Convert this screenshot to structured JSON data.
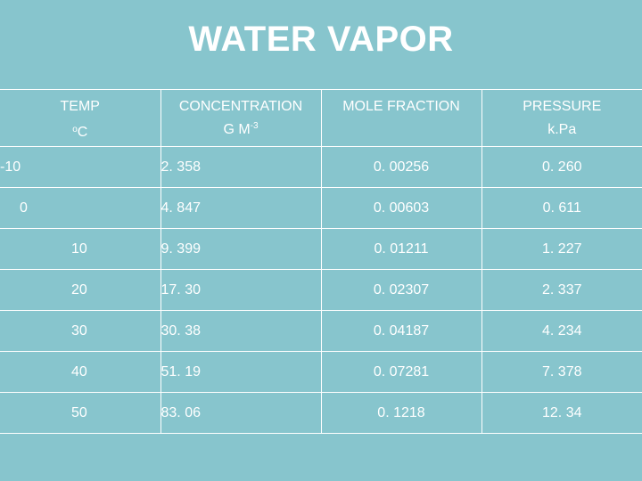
{
  "title": "WATER VAPOR",
  "headers": {
    "temp_line1": "TEMP",
    "temp_line2_unit": "C",
    "temp_line2_deg": "o",
    "conc_line1": "CONCENTRATION",
    "conc_line2": "G M",
    "conc_exp": "-3",
    "mole_line1": "MOLE FRACTION",
    "pressure_line1": "PRESSURE",
    "pressure_line2": "k.Pa"
  },
  "rows": [
    {
      "temp": "-10",
      "conc": "2. 358",
      "mole": "0. 00256",
      "pressure": "0. 260"
    },
    {
      "temp": "0",
      "conc": "4. 847",
      "mole": "0. 00603",
      "pressure": "0. 611"
    },
    {
      "temp": "10",
      "conc": "9. 399",
      "mole": "0. 01211",
      "pressure": "1. 227"
    },
    {
      "temp": "20",
      "conc": "17. 30",
      "mole": "0. 02307",
      "pressure": "2. 337"
    },
    {
      "temp": "30",
      "conc": "30. 38",
      "mole": "0. 04187",
      "pressure": "4. 234"
    },
    {
      "temp": "40",
      "conc": "51. 19",
      "mole": "0. 07281",
      "pressure": "7. 378"
    },
    {
      "temp": "50",
      "conc": "83. 06",
      "mole": "0. 1218",
      "pressure": "12. 34"
    }
  ]
}
